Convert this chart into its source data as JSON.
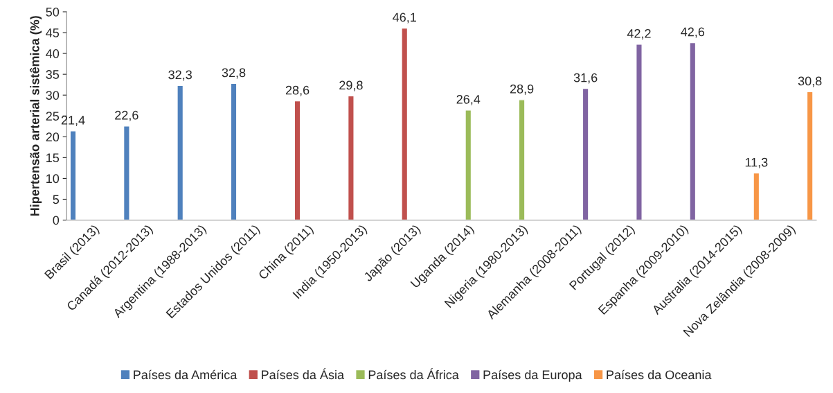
{
  "chart_data": {
    "type": "bar",
    "ylabel": "Hipertensão arterial sistêmica (%)",
    "categories": [
      "Brasil (2013)",
      "Canadá (2012-2013)",
      "Argentina (1988-2013)",
      "Estados Unidos (2011)",
      "China (2011)",
      "India (1950-2013)",
      "Japão (2013)",
      "Uganda (2014)",
      "Nigeria (1980-2013)",
      "Alemanha (2008-2011)",
      "Portugal (2012)",
      "Espanha (2009-2010)",
      "Australia (2014-2015)",
      "Nova Zelândia (2008-2009)"
    ],
    "series": [
      {
        "name": "Países da América",
        "color": "#4f81bd",
        "values": [
          21.4,
          22.6,
          32.3,
          32.8,
          null,
          null,
          null,
          null,
          null,
          null,
          null,
          null,
          null,
          null
        ],
        "value_labels": [
          "21,4",
          "22,6",
          "32,3",
          "32,8",
          null,
          null,
          null,
          null,
          null,
          null,
          null,
          null,
          null,
          null
        ]
      },
      {
        "name": "Países da Ásia",
        "color": "#c0504d",
        "values": [
          null,
          null,
          null,
          null,
          28.6,
          29.8,
          46.1,
          null,
          null,
          null,
          null,
          null,
          null,
          null
        ],
        "value_labels": [
          null,
          null,
          null,
          null,
          "28,6",
          "29,8",
          "46,1",
          null,
          null,
          null,
          null,
          null,
          null,
          null
        ]
      },
      {
        "name": "Países da África",
        "color": "#9bbb59",
        "values": [
          null,
          null,
          null,
          null,
          null,
          null,
          null,
          26.4,
          28.9,
          null,
          null,
          null,
          null,
          null
        ],
        "value_labels": [
          null,
          null,
          null,
          null,
          null,
          null,
          null,
          "26,4",
          "28,9",
          null,
          null,
          null,
          null,
          null
        ]
      },
      {
        "name": "Países da Europa",
        "color": "#8064a2",
        "values": [
          null,
          null,
          null,
          null,
          null,
          null,
          null,
          null,
          null,
          31.6,
          42.2,
          42.6,
          null,
          null
        ],
        "value_labels": [
          null,
          null,
          null,
          null,
          null,
          null,
          null,
          null,
          null,
          "31,6",
          "42,2",
          "42,6",
          null,
          null
        ]
      },
      {
        "name": "Países da Oceania",
        "color": "#f79646",
        "values": [
          null,
          null,
          null,
          null,
          null,
          null,
          null,
          null,
          null,
          null,
          null,
          null,
          11.3,
          30.8
        ],
        "value_labels": [
          null,
          null,
          null,
          null,
          null,
          null,
          null,
          null,
          null,
          null,
          null,
          null,
          "11,3",
          "30,8"
        ]
      }
    ],
    "ylim": [
      0,
      50
    ],
    "yticks": [
      0,
      5,
      10,
      15,
      20,
      25,
      30,
      35,
      40,
      45,
      50
    ],
    "grid": false,
    "legend": "bottom"
  }
}
